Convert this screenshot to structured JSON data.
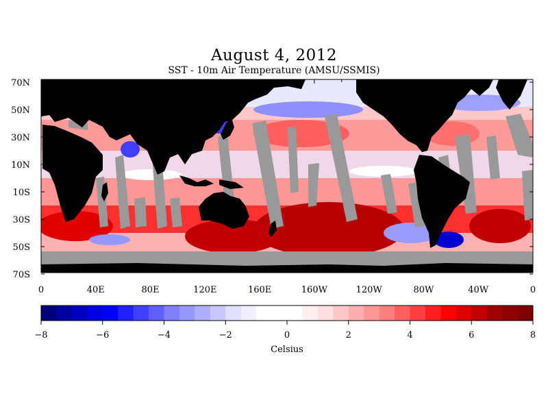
{
  "title": "August 4, 2012",
  "subtitle": "SST - 10m Air Temperature (AMSU/SSMIS)",
  "map": {
    "projection": "equirectangular",
    "lon_range": [
      0,
      360
    ],
    "lat_range": [
      -72,
      75
    ],
    "lat_labels": [
      "70N",
      "50N",
      "30N",
      "10N",
      "10S",
      "30S",
      "50S",
      "70S"
    ],
    "lon_labels": [
      "0",
      "40E",
      "80E",
      "120E",
      "160E",
      "160W",
      "120W",
      "80W",
      "40W",
      "0"
    ],
    "land_color": "#000000",
    "missing_data_color": "#999999"
  },
  "colorbar": {
    "min": -8,
    "max": 8,
    "levels": 32,
    "tick_labels": [
      "−8",
      "−6",
      "−4",
      "−2",
      "0",
      "2",
      "4",
      "6",
      "8"
    ],
    "unit_label": "Celsius",
    "colors": [
      "#00007f",
      "#0000a0",
      "#0000c0",
      "#0000e0",
      "#0000ff",
      "#1f1fff",
      "#3f3fff",
      "#5f5fff",
      "#7f7fff",
      "#9797ff",
      "#afafff",
      "#c7c7ff",
      "#dfdfff",
      "#efefff",
      "#ffffff",
      "#ffffff",
      "#ffffff",
      "#ffefef",
      "#ffdfdf",
      "#ffc7c7",
      "#ffafaf",
      "#ff9797",
      "#ff7f7f",
      "#ff5f5f",
      "#ff3f3f",
      "#ff1f1f",
      "#ff0000",
      "#e00000",
      "#c00000",
      "#a00000",
      "#8f0000",
      "#7f0000"
    ]
  }
}
